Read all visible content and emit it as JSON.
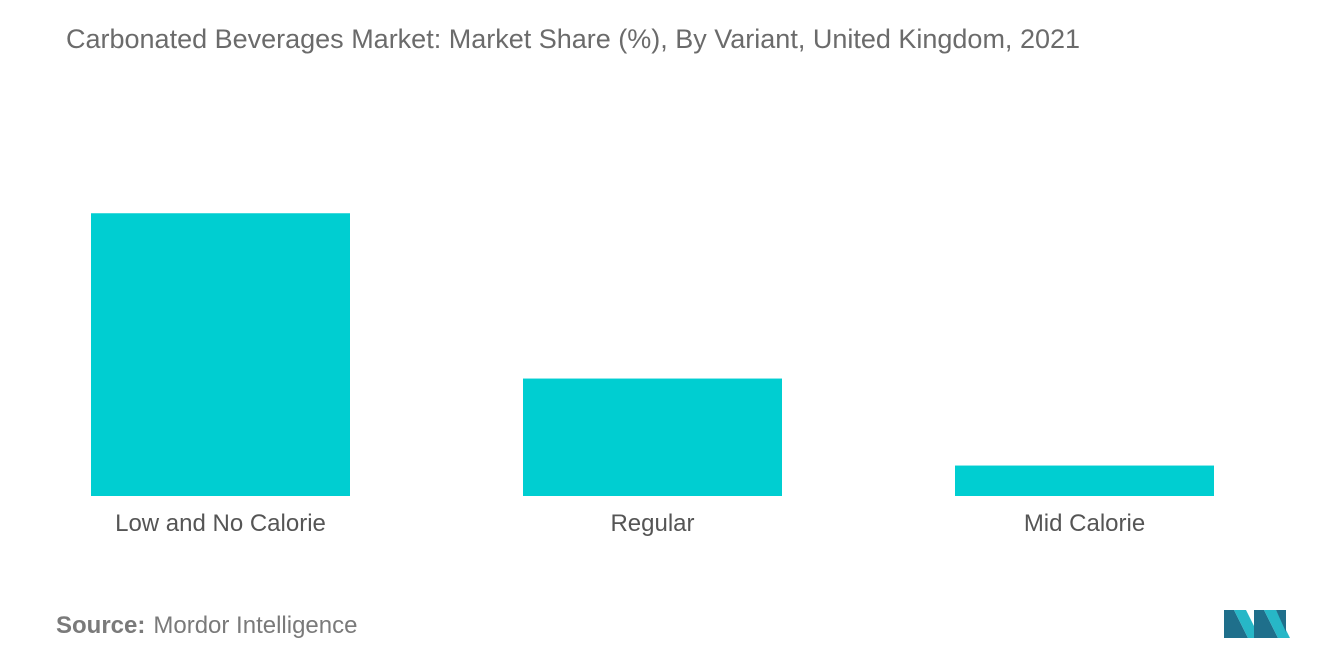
{
  "chart_data": {
    "type": "bar",
    "title": "Carbonated Beverages Market: Market Share (%), By Variant, United Kingdom, 2021",
    "categories": [
      "Low and No Calorie",
      "Regular",
      "Mid Calorie"
    ],
    "values": [
      65,
      27,
      7
    ],
    "xlabel": "",
    "ylabel": "",
    "ylim": [
      0,
      100
    ],
    "grid": false,
    "bar_color": "#00CED1"
  },
  "source": {
    "label": "Source:",
    "value": "Mordor Intelligence"
  },
  "logo": {
    "icon": "mordor-intelligence-logo-icon"
  }
}
